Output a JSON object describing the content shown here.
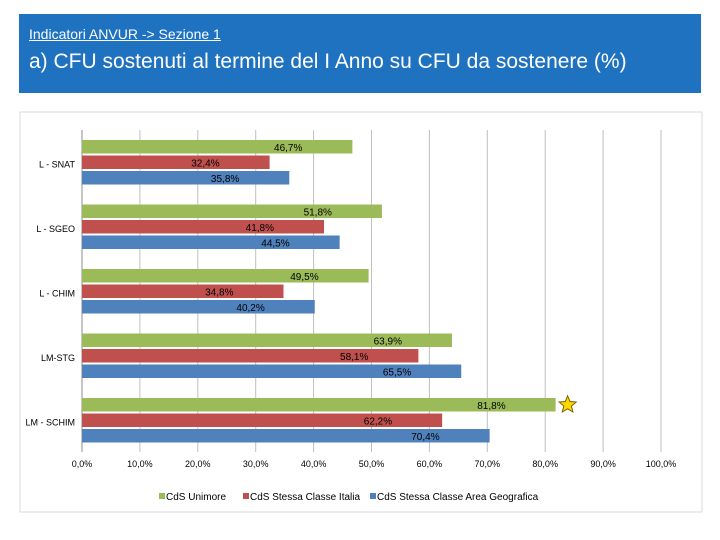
{
  "header": {
    "subtitle": "Indicatori ANVUR -> Sezione 1",
    "title": "a) CFU sostenuti al termine del I Anno su CFU da sostenere (%)"
  },
  "chart_data": {
    "type": "bar",
    "orientation": "horizontal",
    "categories": [
      "L - SNAT",
      "L - SGEO",
      "L - CHIM",
      "LM-STG",
      "LM - SCHIM"
    ],
    "series": [
      {
        "name": "CdS Unimore",
        "color": "#9bbb59",
        "values": [
          46.7,
          51.8,
          49.5,
          63.9,
          81.8
        ],
        "labels": [
          "46,7%",
          "51,8%",
          "49,5%",
          "63,9%",
          "81,8%"
        ]
      },
      {
        "name": "CdS Stessa Classe Italia",
        "color": "#c0504d",
        "values": [
          32.4,
          41.8,
          34.8,
          58.1,
          62.2
        ],
        "labels": [
          "32,4%",
          "41,8%",
          "34,8%",
          "58,1%",
          "62,2%"
        ]
      },
      {
        "name": "CdS Stessa Classe Area Geografica",
        "color": "#4f81bd",
        "values": [
          35.8,
          44.5,
          40.2,
          65.5,
          70.4
        ],
        "labels": [
          "35,8%",
          "44,5%",
          "40,2%",
          "65,5%",
          "70,4%"
        ]
      }
    ],
    "xlim": [
      0,
      100
    ],
    "xticks": [
      "0,0%",
      "10,0%",
      "20,0%",
      "30,0%",
      "40,0%",
      "50,0%",
      "60,0%",
      "70,0%",
      "80,0%",
      "90,0%",
      "100,0%"
    ],
    "grid": true,
    "legend": "bottom",
    "annotation": {
      "type": "star",
      "category": "LM - SCHIM",
      "series": "CdS Unimore",
      "color": "#ffd700"
    }
  }
}
